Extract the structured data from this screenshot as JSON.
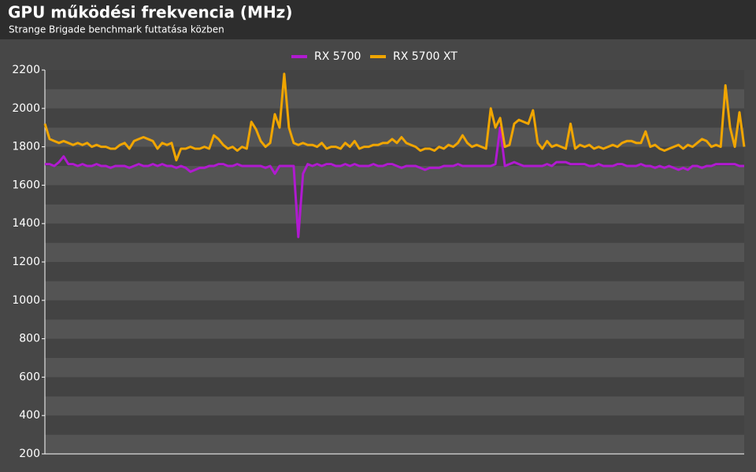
{
  "chart_data": {
    "type": "line",
    "title": "GPU működési frekvencia (MHz)",
    "subtitle": "Strange Brigade benchmark futtatása közben",
    "ylim": [
      200,
      2200
    ],
    "yticks": [
      200,
      400,
      600,
      800,
      1000,
      1200,
      1400,
      1600,
      1800,
      2000,
      2200
    ],
    "legend": "top",
    "series": [
      {
        "name": "RX 5700",
        "color": "#b01ad0",
        "values": [
          1710,
          1710,
          1700,
          1720,
          1750,
          1710,
          1710,
          1700,
          1710,
          1700,
          1700,
          1710,
          1700,
          1700,
          1690,
          1700,
          1700,
          1700,
          1690,
          1700,
          1710,
          1700,
          1700,
          1710,
          1700,
          1710,
          1700,
          1700,
          1690,
          1700,
          1690,
          1670,
          1680,
          1690,
          1690,
          1700,
          1700,
          1710,
          1710,
          1700,
          1700,
          1710,
          1700,
          1700,
          1700,
          1700,
          1700,
          1690,
          1700,
          1660,
          1700,
          1700,
          1700,
          1700,
          1330,
          1660,
          1710,
          1700,
          1710,
          1700,
          1710,
          1710,
          1700,
          1700,
          1710,
          1700,
          1710,
          1700,
          1700,
          1700,
          1710,
          1700,
          1700,
          1710,
          1710,
          1700,
          1690,
          1700,
          1700,
          1700,
          1690,
          1680,
          1690,
          1690,
          1690,
          1700,
          1700,
          1700,
          1710,
          1700,
          1700,
          1700,
          1700,
          1700,
          1700,
          1700,
          1710,
          1900,
          1700,
          1710,
          1720,
          1710,
          1700,
          1700,
          1700,
          1700,
          1700,
          1710,
          1700,
          1720,
          1720,
          1720,
          1710,
          1710,
          1710,
          1710,
          1700,
          1700,
          1710,
          1700,
          1700,
          1700,
          1710,
          1710,
          1700,
          1700,
          1700,
          1710,
          1700,
          1700,
          1690,
          1700,
          1690,
          1700,
          1690,
          1680,
          1690,
          1680,
          1700,
          1700,
          1690,
          1700,
          1700,
          1710,
          1710,
          1710,
          1710,
          1710,
          1700,
          1700
        ]
      },
      {
        "name": "RX 5700 XT",
        "color": "#f0a500",
        "values": [
          1920,
          1840,
          1830,
          1820,
          1830,
          1820,
          1810,
          1820,
          1810,
          1820,
          1800,
          1810,
          1800,
          1800,
          1790,
          1790,
          1810,
          1820,
          1790,
          1830,
          1840,
          1850,
          1840,
          1830,
          1790,
          1820,
          1810,
          1820,
          1730,
          1790,
          1790,
          1800,
          1790,
          1790,
          1800,
          1790,
          1860,
          1840,
          1810,
          1790,
          1800,
          1780,
          1800,
          1790,
          1930,
          1890,
          1830,
          1800,
          1820,
          1970,
          1900,
          2180,
          1900,
          1820,
          1810,
          1820,
          1810,
          1810,
          1800,
          1820,
          1790,
          1800,
          1800,
          1790,
          1820,
          1800,
          1830,
          1790,
          1800,
          1800,
          1810,
          1810,
          1820,
          1820,
          1840,
          1820,
          1850,
          1820,
          1810,
          1800,
          1780,
          1790,
          1790,
          1780,
          1800,
          1790,
          1810,
          1800,
          1820,
          1860,
          1820,
          1800,
          1810,
          1800,
          1790,
          2000,
          1900,
          1950,
          1800,
          1810,
          1920,
          1940,
          1930,
          1920,
          1990,
          1820,
          1790,
          1830,
          1800,
          1810,
          1800,
          1790,
          1920,
          1790,
          1810,
          1800,
          1810,
          1790,
          1800,
          1790,
          1800,
          1810,
          1800,
          1820,
          1830,
          1830,
          1820,
          1820,
          1880,
          1800,
          1810,
          1790,
          1780,
          1790,
          1800,
          1810,
          1790,
          1810,
          1800,
          1820,
          1840,
          1830,
          1800,
          1810,
          1800,
          2120,
          1900,
          1800,
          1980,
          1800
        ]
      }
    ]
  }
}
